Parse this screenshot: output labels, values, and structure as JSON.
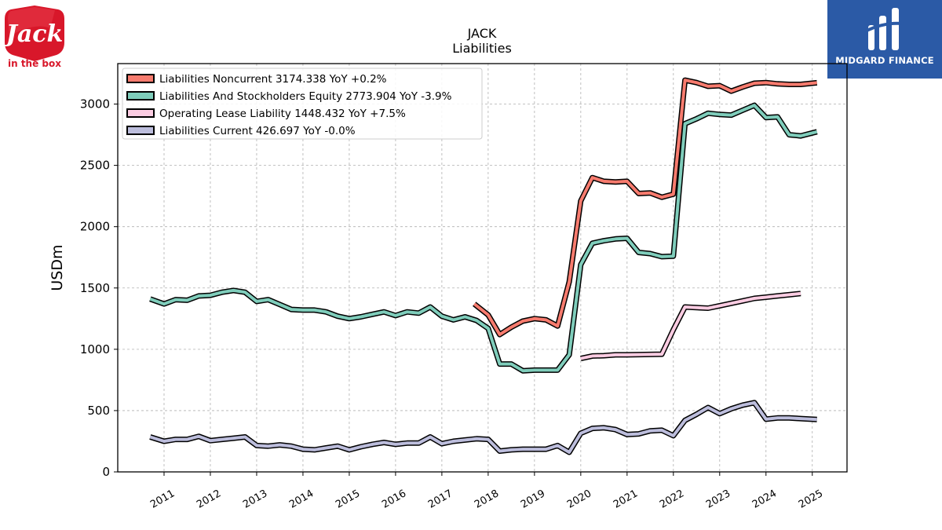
{
  "logo": {
    "name": "Jack",
    "tagline": "in the box",
    "color": "#d8172a"
  },
  "brand": {
    "name": "MIDGARD FINANCE",
    "color": "#2b5aa6"
  },
  "chart_data": {
    "type": "line",
    "title": "JACK",
    "subtitle": "Liabilities",
    "ylabel": "USDm",
    "xlabel": "",
    "ylim": [
      0,
      3330
    ],
    "xlim": [
      2010.0,
      2025.75
    ],
    "yticks": [
      0,
      500,
      1000,
      1500,
      2000,
      2500,
      3000
    ],
    "xticks": [
      "2011",
      "2012",
      "2013",
      "2014",
      "2015",
      "2016",
      "2017",
      "2018",
      "2019",
      "2020",
      "2021",
      "2022",
      "2023",
      "2024",
      "2025"
    ],
    "grid": true,
    "legend_position": "top-left",
    "series": [
      {
        "name": "Liabilities Noncurrent",
        "legend_label": "Liabilities Noncurrent  3174.338 YoY +0.2%",
        "color": "#f77b6e",
        "x": [
          2017.7,
          2018.0,
          2018.25,
          2018.5,
          2018.75,
          2019.0,
          2019.25,
          2019.5,
          2019.75,
          2020.0,
          2020.25,
          2020.5,
          2020.75,
          2021.0,
          2021.25,
          2021.5,
          2021.75,
          2022.0,
          2022.25,
          2022.5,
          2022.75,
          2023.0,
          2023.25,
          2023.5,
          2023.75,
          2024.0,
          2024.25,
          2024.5,
          2024.75,
          2025.1
        ],
        "values": [
          1370,
          1280,
          1120,
          1180,
          1230,
          1250,
          1240,
          1190,
          1550,
          2210,
          2400,
          2370,
          2365,
          2370,
          2270,
          2275,
          2240,
          2265,
          3195,
          3175,
          3145,
          3150,
          3105,
          3140,
          3170,
          3175,
          3165,
          3160,
          3160,
          3174
        ]
      },
      {
        "name": "Liabilities And Stockholders Equity",
        "legend_label": "Liabilities And Stockholders Equity  2773.904 YoY -3.9%",
        "color": "#7fcdbb",
        "x": [
          2010.7,
          2011.0,
          2011.25,
          2011.5,
          2011.75,
          2012.0,
          2012.25,
          2012.5,
          2012.75,
          2013.0,
          2013.25,
          2013.5,
          2013.75,
          2014.0,
          2014.25,
          2014.5,
          2014.75,
          2015.0,
          2015.25,
          2015.5,
          2015.75,
          2016.0,
          2016.25,
          2016.5,
          2016.75,
          2017.0,
          2017.25,
          2017.5,
          2017.75,
          2018.0,
          2018.25,
          2018.5,
          2018.75,
          2019.0,
          2019.25,
          2019.5,
          2019.75,
          2020.0,
          2020.25,
          2020.5,
          2020.75,
          2021.0,
          2021.25,
          2021.5,
          2021.75,
          2022.0,
          2022.25,
          2022.5,
          2022.75,
          2023.0,
          2023.25,
          2023.5,
          2023.75,
          2024.0,
          2024.25,
          2024.5,
          2024.75,
          2025.1
        ],
        "values": [
          1410,
          1370,
          1405,
          1400,
          1435,
          1440,
          1465,
          1480,
          1465,
          1390,
          1405,
          1365,
          1325,
          1320,
          1320,
          1305,
          1270,
          1250,
          1265,
          1285,
          1305,
          1275,
          1305,
          1295,
          1345,
          1270,
          1240,
          1265,
          1235,
          1170,
          880,
          880,
          825,
          830,
          830,
          830,
          955,
          1690,
          1865,
          1885,
          1900,
          1905,
          1790,
          1780,
          1755,
          1760,
          2840,
          2880,
          2925,
          2915,
          2910,
          2950,
          2990,
          2890,
          2895,
          2750,
          2740,
          2774
        ]
      },
      {
        "name": "Operating Lease Liability",
        "legend_label": "Operating Lease Liability  1448.432 YoY +7.5%",
        "color": "#fbcce2",
        "x": [
          2020.0,
          2020.25,
          2020.5,
          2020.75,
          2021.0,
          2021.25,
          2021.5,
          2021.75,
          2022.0,
          2022.25,
          2022.5,
          2022.75,
          2023.0,
          2023.25,
          2023.5,
          2023.75,
          2024.0,
          2024.25,
          2024.5,
          2024.75
        ],
        "values": [
          925,
          945,
          948,
          955,
          955,
          957,
          958,
          960,
          1160,
          1345,
          1340,
          1335,
          1355,
          1375,
          1395,
          1415,
          1425,
          1435,
          1445,
          1455
        ]
      },
      {
        "name": "Liabilities Current",
        "legend_label": "Liabilities Current  426.697 YoY -0.0%",
        "color": "#bcbddc",
        "x": [
          2010.7,
          2011.0,
          2011.25,
          2011.5,
          2011.75,
          2012.0,
          2012.25,
          2012.5,
          2012.75,
          2013.0,
          2013.25,
          2013.5,
          2013.75,
          2014.0,
          2014.25,
          2014.5,
          2014.75,
          2015.0,
          2015.25,
          2015.5,
          2015.75,
          2016.0,
          2016.25,
          2016.5,
          2016.75,
          2017.0,
          2017.25,
          2017.5,
          2017.75,
          2018.0,
          2018.25,
          2018.5,
          2018.75,
          2019.0,
          2019.25,
          2019.5,
          2019.75,
          2020.0,
          2020.25,
          2020.5,
          2020.75,
          2021.0,
          2021.25,
          2021.5,
          2021.75,
          2022.0,
          2022.25,
          2022.5,
          2022.75,
          2023.0,
          2023.25,
          2023.5,
          2023.75,
          2024.0,
          2024.25,
          2024.5,
          2024.75,
          2025.1
        ],
        "values": [
          285,
          250,
          265,
          265,
          290,
          255,
          265,
          275,
          285,
          215,
          210,
          220,
          210,
          185,
          180,
          195,
          210,
          180,
          205,
          225,
          240,
          225,
          235,
          235,
          285,
          230,
          250,
          260,
          270,
          265,
          170,
          180,
          185,
          185,
          185,
          215,
          160,
          315,
          355,
          360,
          345,
          305,
          310,
          335,
          340,
          295,
          420,
          470,
          525,
          475,
          515,
          545,
          565,
          430,
          440,
          440,
          435,
          427
        ]
      }
    ]
  }
}
